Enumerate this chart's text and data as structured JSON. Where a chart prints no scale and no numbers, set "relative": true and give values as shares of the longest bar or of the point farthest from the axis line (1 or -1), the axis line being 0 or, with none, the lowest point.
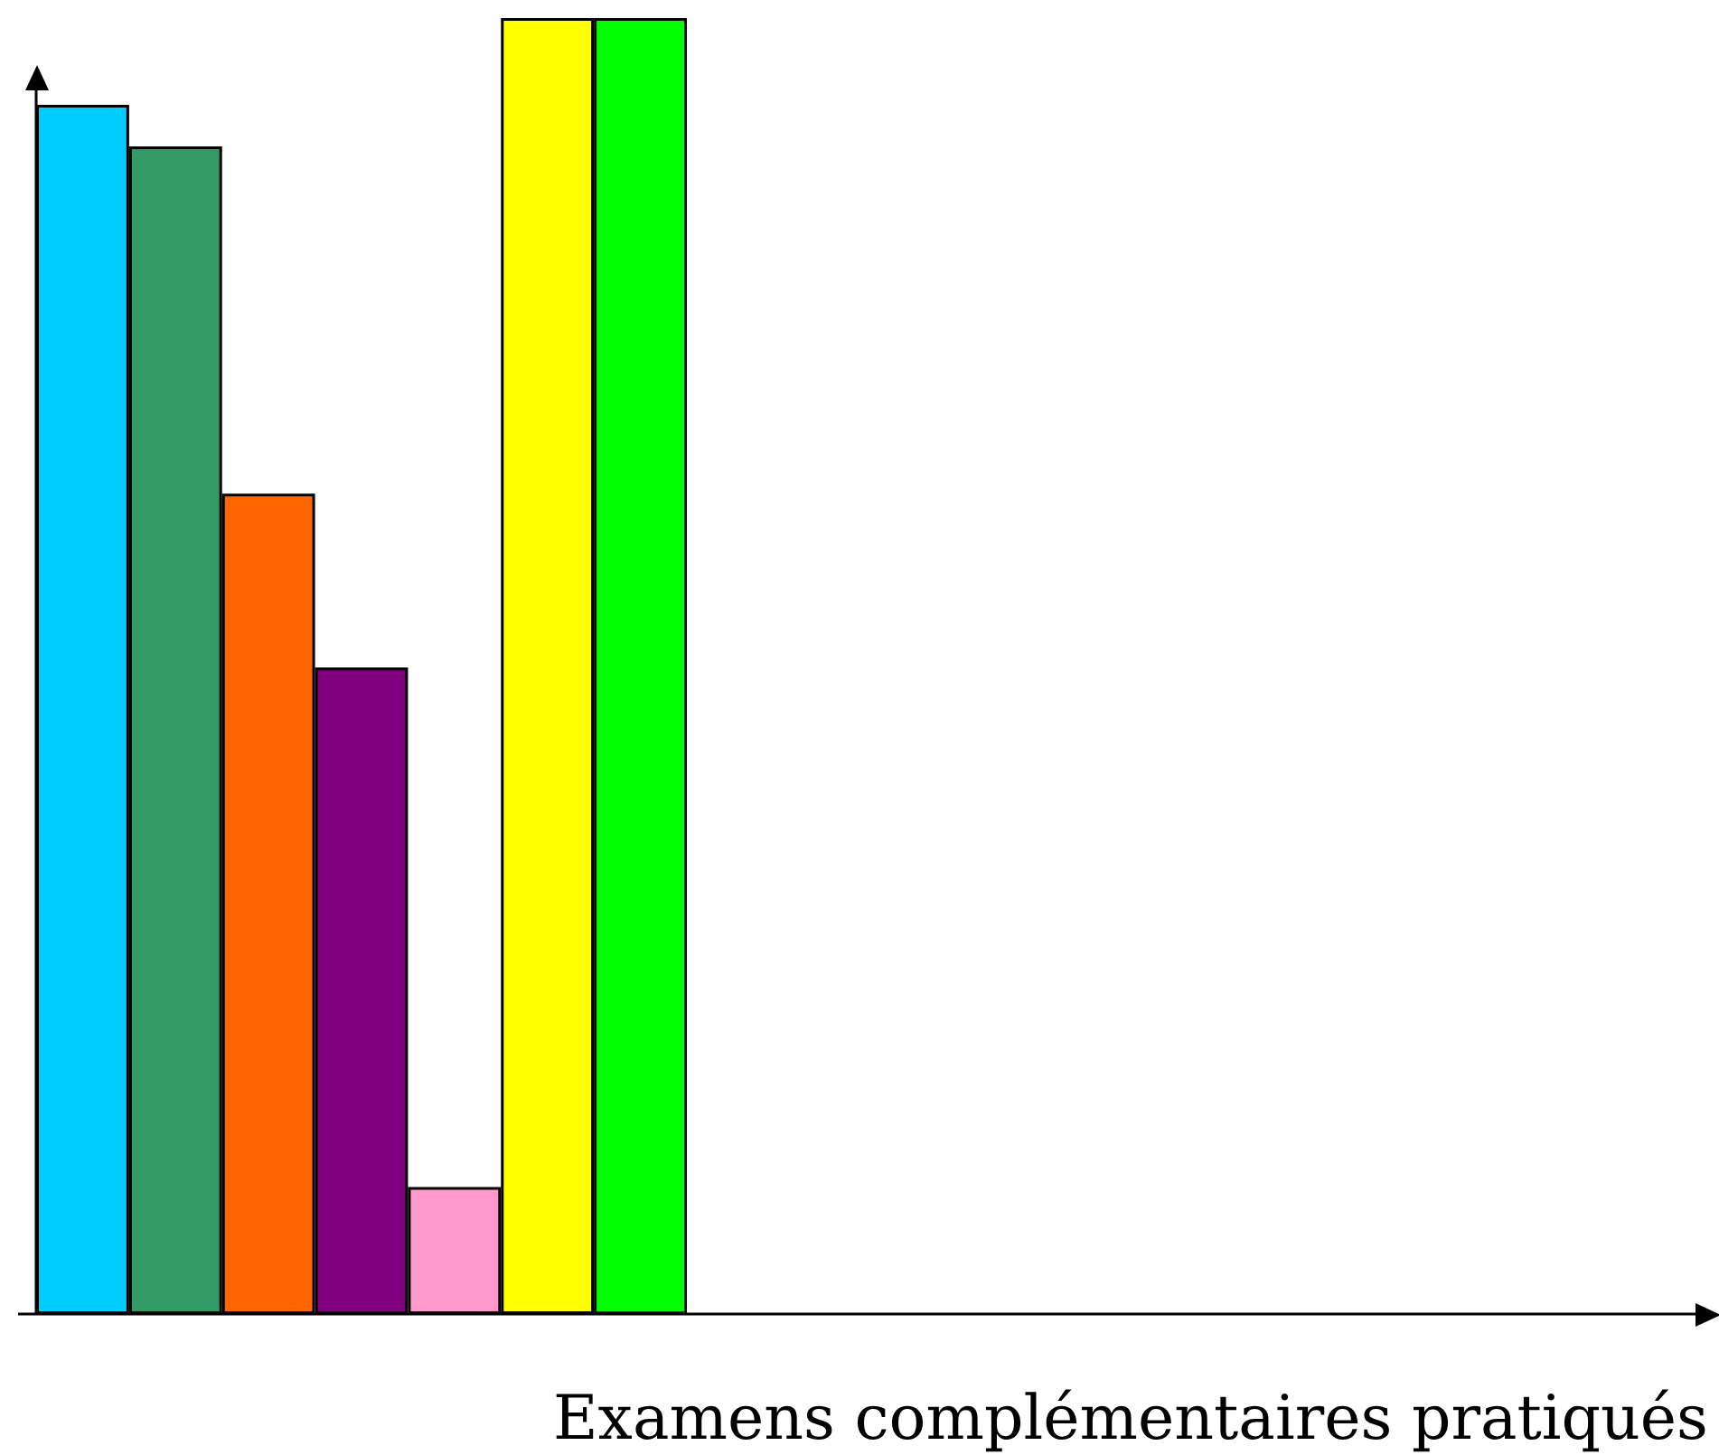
{
  "chart_data": {
    "type": "bar",
    "relative": true,
    "xlabel": "Examens complémentaires pratiqués",
    "categories": [
      null,
      null,
      null,
      null,
      null,
      null,
      null
    ],
    "values": [
      0.933,
      0.901,
      0.633,
      0.499,
      0.098,
      1,
      1
    ],
    "colors": [
      "#00ccff",
      "#339966",
      "#ff6600",
      "#800080",
      "#ff99cc",
      "#ffff00",
      "#00ff00"
    ],
    "grid": false
  }
}
